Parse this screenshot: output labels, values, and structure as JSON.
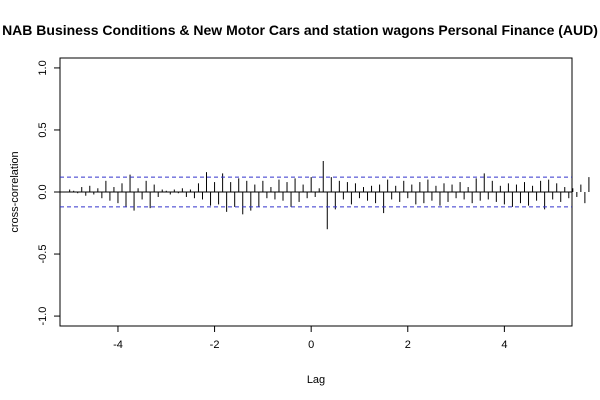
{
  "chart_data": {
    "type": "bar",
    "title": "NAB Business Conditions & New Motor Cars and station wagons Personal Finance (AUD)",
    "xlabel": "Lag",
    "ylabel": "cross-correlation",
    "xlim": [
      -5.2,
      5.4
    ],
    "ylim": [
      -1.08,
      1.08
    ],
    "xticks": [
      -4,
      -2,
      0,
      2,
      4
    ],
    "xtick_labels": [
      "-4",
      "-2",
      "0",
      "2",
      "4"
    ],
    "yticks": [
      -1.0,
      -0.5,
      0.0,
      0.5,
      1.0
    ],
    "ytick_labels": [
      "-1.0",
      "-0.5",
      "0.0",
      "0.5",
      "1.0"
    ],
    "confidence_band": 0.12,
    "lag_step": 0.0833333,
    "lag_min": -5.0,
    "values": [
      0.02,
      0.01,
      -0.01,
      0.04,
      -0.03,
      0.05,
      -0.02,
      0.03,
      -0.05,
      0.09,
      -0.07,
      0.04,
      -0.09,
      0.07,
      -0.12,
      0.14,
      -0.15,
      0.03,
      -0.06,
      0.09,
      -0.13,
      0.06,
      -0.04,
      0.02,
      0.01,
      -0.02,
      0.02,
      -0.01,
      0.03,
      -0.04,
      0.02,
      -0.05,
      0.07,
      -0.06,
      0.16,
      -0.11,
      0.08,
      -0.1,
      0.15,
      -0.16,
      0.08,
      -0.12,
      0.11,
      -0.18,
      0.09,
      -0.15,
      0.06,
      -0.12,
      0.09,
      -0.05,
      0.04,
      -0.06,
      0.1,
      -0.07,
      0.08,
      -0.12,
      0.11,
      -0.08,
      0.06,
      -0.05,
      0.12,
      -0.04,
      0.03,
      0.25,
      -0.3,
      0.12,
      -0.14,
      0.09,
      -0.06,
      0.08,
      -0.1,
      0.07,
      -0.05,
      0.04,
      -0.07,
      0.05,
      -0.09,
      0.06,
      -0.17,
      0.1,
      -0.06,
      0.05,
      -0.08,
      0.09,
      -0.05,
      0.06,
      -0.1,
      0.08,
      -0.09,
      0.1,
      -0.07,
      0.05,
      -0.11,
      0.07,
      -0.08,
      0.06,
      -0.05,
      0.08,
      -0.06,
      0.04,
      -0.09,
      0.11,
      -0.07,
      0.15,
      -0.06,
      0.09,
      -0.08,
      0.05,
      -0.1,
      0.07,
      -0.12,
      0.06,
      -0.09,
      0.08,
      -0.11,
      0.05,
      -0.07,
      0.09,
      -0.14,
      0.1,
      -0.06,
      0.07,
      -0.08,
      0.04,
      -0.05,
      0.03,
      -0.04,
      0.06,
      -0.09,
      0.12
    ],
    "colors": {
      "stem": "#000000",
      "band": "#3333cc",
      "zero_line": "#000000",
      "frame": "#000000"
    }
  }
}
